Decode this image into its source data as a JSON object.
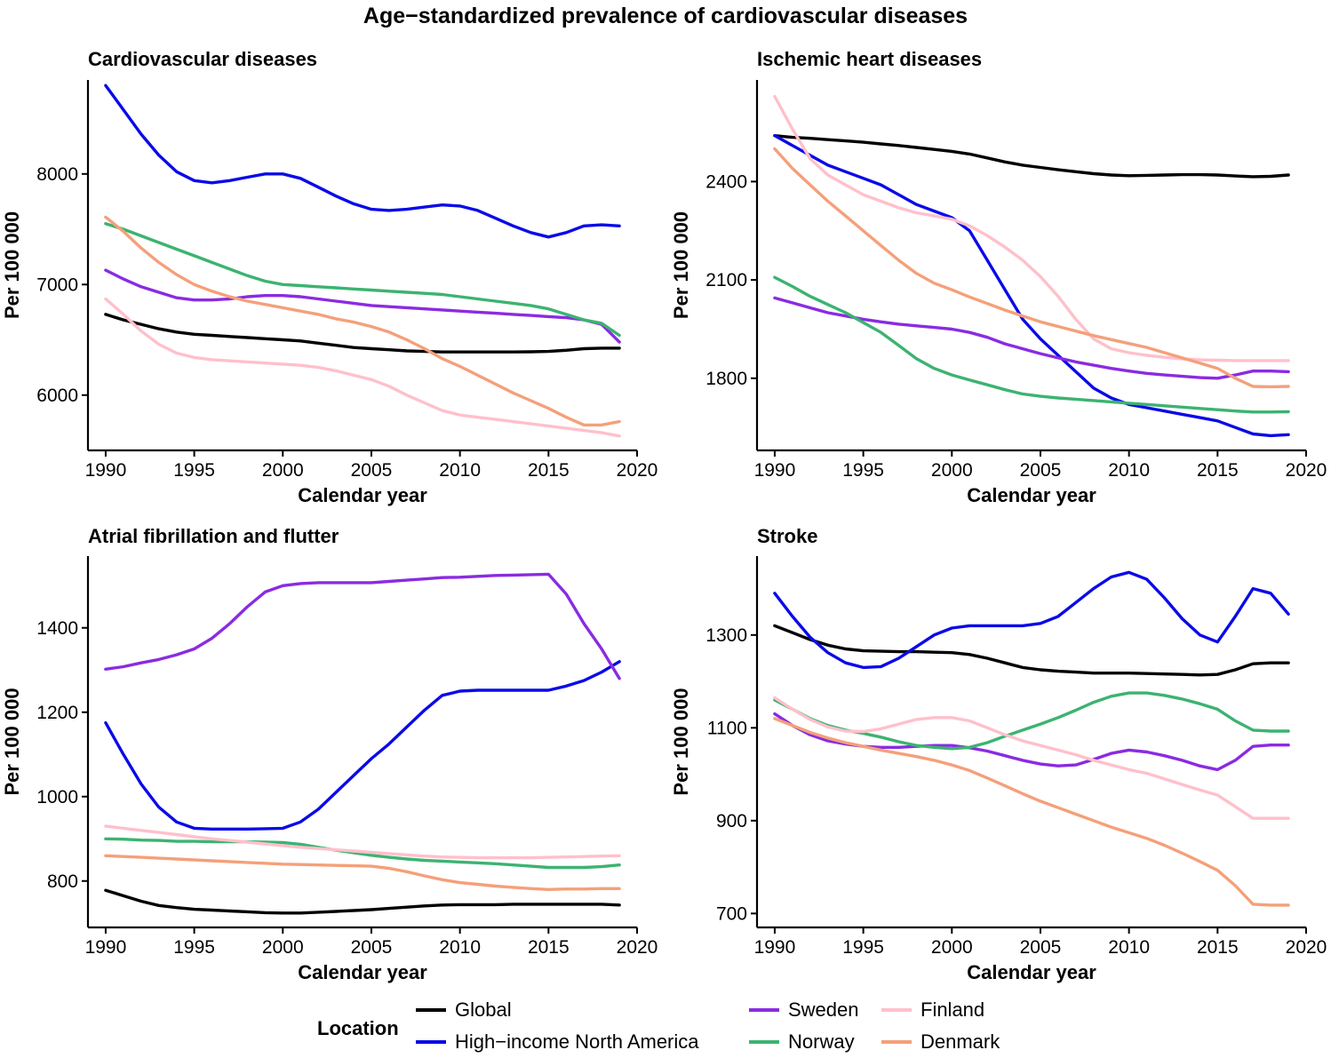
{
  "title": "Age−standardized prevalence of cardiovascular diseases",
  "legend": {
    "title": "Location",
    "items": [
      {
        "name": "Global",
        "color": "#000000"
      },
      {
        "name": "High−income North America",
        "color": "#0a0ae8"
      },
      {
        "name": "Sweden",
        "color": "#8a2be2"
      },
      {
        "name": "Norway",
        "color": "#3cb371"
      },
      {
        "name": "Finland",
        "color": "#ffc0cb"
      },
      {
        "name": "Denmark",
        "color": "#f4a07a"
      }
    ]
  },
  "chart_data": [
    {
      "type": "line",
      "title": "Cardiovascular diseases",
      "xlabel": "Calendar year",
      "ylabel": "Per 100 000",
      "xlim": [
        1989,
        2020
      ],
      "ylim": [
        5500,
        8850
      ],
      "xticks": [
        1990,
        1995,
        2000,
        2005,
        2010,
        2015,
        2020
      ],
      "yticks": [
        6000,
        7000,
        8000
      ],
      "x": [
        1990,
        1991,
        1992,
        1993,
        1994,
        1995,
        1996,
        1997,
        1998,
        1999,
        2000,
        2001,
        2002,
        2003,
        2004,
        2005,
        2006,
        2007,
        2008,
        2009,
        2010,
        2011,
        2012,
        2013,
        2014,
        2015,
        2016,
        2017,
        2018,
        2019
      ],
      "series": [
        {
          "name": "Global",
          "values": [
            6730,
            6680,
            6640,
            6600,
            6570,
            6550,
            6540,
            6530,
            6520,
            6510,
            6500,
            6490,
            6470,
            6450,
            6430,
            6420,
            6410,
            6400,
            6395,
            6390,
            6390,
            6390,
            6390,
            6390,
            6392,
            6395,
            6405,
            6420,
            6425,
            6425
          ]
        },
        {
          "name": "High−income North America",
          "values": [
            8800,
            8580,
            8360,
            8170,
            8020,
            7940,
            7920,
            7940,
            7970,
            8000,
            8000,
            7960,
            7880,
            7800,
            7730,
            7680,
            7670,
            7680,
            7700,
            7720,
            7710,
            7670,
            7600,
            7530,
            7470,
            7430,
            7470,
            7530,
            7540,
            7530
          ]
        },
        {
          "name": "Sweden",
          "values": [
            7130,
            7050,
            6980,
            6930,
            6880,
            6860,
            6860,
            6870,
            6890,
            6900,
            6900,
            6890,
            6870,
            6850,
            6830,
            6810,
            6800,
            6790,
            6780,
            6770,
            6760,
            6750,
            6740,
            6730,
            6720,
            6710,
            6700,
            6680,
            6640,
            6480
          ]
        },
        {
          "name": "Norway",
          "values": [
            7550,
            7500,
            7440,
            7380,
            7320,
            7260,
            7200,
            7140,
            7080,
            7030,
            7000,
            6990,
            6980,
            6970,
            6960,
            6950,
            6940,
            6930,
            6920,
            6910,
            6890,
            6870,
            6850,
            6830,
            6810,
            6780,
            6730,
            6680,
            6650,
            6540
          ]
        },
        {
          "name": "Finland",
          "values": [
            6870,
            6730,
            6580,
            6460,
            6380,
            6340,
            6320,
            6310,
            6300,
            6290,
            6280,
            6270,
            6250,
            6220,
            6180,
            6140,
            6080,
            6000,
            5930,
            5860,
            5820,
            5800,
            5780,
            5760,
            5740,
            5720,
            5700,
            5680,
            5660,
            5630
          ]
        },
        {
          "name": "Denmark",
          "values": [
            7610,
            7480,
            7330,
            7200,
            7090,
            7000,
            6940,
            6890,
            6850,
            6820,
            6790,
            6760,
            6730,
            6690,
            6660,
            6620,
            6570,
            6500,
            6420,
            6330,
            6260,
            6180,
            6100,
            6020,
            5950,
            5880,
            5800,
            5730,
            5730,
            5760
          ]
        }
      ]
    },
    {
      "type": "line",
      "title": "Ischemic heart diseases",
      "xlabel": "Calendar year",
      "ylabel": "Per 100 000",
      "xlim": [
        1989,
        2020
      ],
      "ylim": [
        1580,
        2710
      ],
      "xticks": [
        1990,
        1995,
        2000,
        2005,
        2010,
        2015,
        2020
      ],
      "yticks": [
        1800,
        2100,
        2400
      ],
      "x": [
        1990,
        1991,
        1992,
        1993,
        1994,
        1995,
        1996,
        1997,
        1998,
        1999,
        2000,
        2001,
        2002,
        2003,
        2004,
        2005,
        2006,
        2007,
        2008,
        2009,
        2010,
        2011,
        2012,
        2013,
        2014,
        2015,
        2016,
        2017,
        2018,
        2019
      ],
      "series": [
        {
          "name": "Global",
          "values": [
            2540,
            2535,
            2532,
            2528,
            2524,
            2520,
            2515,
            2510,
            2504,
            2498,
            2492,
            2484,
            2472,
            2460,
            2450,
            2443,
            2436,
            2430,
            2424,
            2420,
            2418,
            2419,
            2420,
            2421,
            2421,
            2420,
            2417,
            2415,
            2416,
            2420
          ]
        },
        {
          "name": "High−income North America",
          "values": [
            2540,
            2510,
            2480,
            2450,
            2430,
            2410,
            2390,
            2360,
            2330,
            2310,
            2290,
            2250,
            2160,
            2070,
            1980,
            1920,
            1870,
            1820,
            1770,
            1740,
            1720,
            1710,
            1700,
            1690,
            1680,
            1670,
            1650,
            1630,
            1625,
            1628
          ]
        },
        {
          "name": "Sweden",
          "values": [
            2045,
            2030,
            2015,
            2000,
            1990,
            1980,
            1972,
            1965,
            1960,
            1955,
            1950,
            1940,
            1925,
            1905,
            1890,
            1875,
            1862,
            1850,
            1840,
            1830,
            1822,
            1815,
            1810,
            1806,
            1802,
            1800,
            1810,
            1822,
            1822,
            1820
          ]
        },
        {
          "name": "Norway",
          "values": [
            2108,
            2080,
            2050,
            2025,
            2000,
            1970,
            1940,
            1900,
            1860,
            1830,
            1810,
            1795,
            1780,
            1765,
            1752,
            1745,
            1740,
            1736,
            1732,
            1728,
            1724,
            1720,
            1716,
            1712,
            1708,
            1704,
            1700,
            1697,
            1697,
            1698
          ]
        },
        {
          "name": "Finland",
          "values": [
            2660,
            2560,
            2470,
            2420,
            2390,
            2360,
            2340,
            2320,
            2305,
            2295,
            2285,
            2265,
            2235,
            2200,
            2160,
            2110,
            2050,
            1980,
            1920,
            1890,
            1878,
            1870,
            1864,
            1859,
            1856,
            1855,
            1854,
            1854,
            1854,
            1854
          ]
        },
        {
          "name": "Denmark",
          "values": [
            2500,
            2440,
            2390,
            2340,
            2295,
            2250,
            2205,
            2160,
            2120,
            2090,
            2070,
            2048,
            2028,
            2008,
            1990,
            1972,
            1958,
            1944,
            1930,
            1918,
            1906,
            1894,
            1878,
            1862,
            1846,
            1830,
            1800,
            1775,
            1774,
            1775
          ]
        }
      ]
    },
    {
      "type": "line",
      "title": "Atrial fibrillation and flutter",
      "xlabel": "Calendar year",
      "ylabel": "Per 100 000",
      "xlim": [
        1989,
        2020
      ],
      "ylim": [
        690,
        1570
      ],
      "xticks": [
        1990,
        1995,
        2000,
        2005,
        2010,
        2015,
        2020
      ],
      "yticks": [
        800,
        1000,
        1200,
        1400
      ],
      "x": [
        1990,
        1991,
        1992,
        1993,
        1994,
        1995,
        1996,
        1997,
        1998,
        1999,
        2000,
        2001,
        2002,
        2003,
        2004,
        2005,
        2006,
        2007,
        2008,
        2009,
        2010,
        2011,
        2012,
        2013,
        2014,
        2015,
        2016,
        2017,
        2018,
        2019
      ],
      "series": [
        {
          "name": "Global",
          "values": [
            778,
            765,
            752,
            742,
            737,
            733,
            731,
            729,
            727,
            725,
            724,
            724,
            726,
            728,
            730,
            732,
            735,
            738,
            741,
            743,
            744,
            744,
            744,
            745,
            745,
            745,
            745,
            745,
            745,
            743
          ]
        },
        {
          "name": "High−income North America",
          "values": [
            1175,
            1100,
            1030,
            975,
            940,
            925,
            923,
            923,
            923,
            924,
            925,
            940,
            970,
            1010,
            1050,
            1090,
            1125,
            1165,
            1205,
            1240,
            1250,
            1252,
            1252,
            1252,
            1252,
            1252,
            1262,
            1275,
            1295,
            1320
          ]
        },
        {
          "name": "Sweden",
          "values": [
            1302,
            1308,
            1317,
            1325,
            1336,
            1350,
            1375,
            1410,
            1450,
            1485,
            1500,
            1505,
            1507,
            1507,
            1507,
            1507,
            1510,
            1513,
            1516,
            1519,
            1520,
            1522,
            1524,
            1525,
            1526,
            1527,
            1480,
            1410,
            1350,
            1280
          ]
        },
        {
          "name": "Norway",
          "values": [
            900,
            899,
            897,
            896,
            894,
            894,
            893,
            893,
            893,
            892,
            891,
            887,
            880,
            873,
            867,
            861,
            856,
            852,
            849,
            847,
            845,
            843,
            841,
            838,
            835,
            832,
            832,
            832,
            834,
            838
          ]
        },
        {
          "name": "Finland",
          "values": [
            930,
            925,
            920,
            915,
            910,
            905,
            900,
            896,
            892,
            888,
            884,
            880,
            877,
            874,
            871,
            868,
            865,
            862,
            859,
            857,
            856,
            855,
            855,
            855,
            855,
            856,
            857,
            858,
            859,
            860
          ]
        },
        {
          "name": "Denmark",
          "values": [
            860,
            858,
            856,
            854,
            852,
            850,
            848,
            846,
            844,
            842,
            840,
            839,
            838,
            837,
            836,
            835,
            830,
            822,
            812,
            803,
            796,
            792,
            788,
            785,
            782,
            780,
            781,
            781,
            782,
            782
          ]
        }
      ]
    },
    {
      "type": "line",
      "title": "Stroke",
      "xlabel": "Calendar year",
      "ylabel": "Per 100 000",
      "xlim": [
        1989,
        2020
      ],
      "ylim": [
        670,
        1470
      ],
      "xticks": [
        1990,
        1995,
        2000,
        2005,
        2010,
        2015,
        2020
      ],
      "yticks": [
        700,
        900,
        1100,
        1300
      ],
      "x": [
        1990,
        1991,
        1992,
        1993,
        1994,
        1995,
        1996,
        1997,
        1998,
        1999,
        2000,
        2001,
        2002,
        2003,
        2004,
        2005,
        2006,
        2007,
        2008,
        2009,
        2010,
        2011,
        2012,
        2013,
        2014,
        2015,
        2016,
        2017,
        2018,
        2019
      ],
      "series": [
        {
          "name": "Global",
          "values": [
            1320,
            1305,
            1290,
            1278,
            1270,
            1266,
            1265,
            1264,
            1264,
            1263,
            1262,
            1258,
            1250,
            1240,
            1230,
            1225,
            1222,
            1220,
            1218,
            1218,
            1218,
            1217,
            1216,
            1215,
            1214,
            1215,
            1225,
            1238,
            1240,
            1240
          ]
        },
        {
          "name": "High−income North America",
          "values": [
            1390,
            1340,
            1295,
            1262,
            1240,
            1230,
            1232,
            1250,
            1275,
            1300,
            1315,
            1320,
            1320,
            1320,
            1320,
            1325,
            1340,
            1370,
            1400,
            1425,
            1435,
            1420,
            1380,
            1335,
            1300,
            1285,
            1340,
            1400,
            1390,
            1345
          ]
        },
        {
          "name": "Sweden",
          "values": [
            1130,
            1105,
            1085,
            1072,
            1065,
            1060,
            1058,
            1058,
            1060,
            1062,
            1062,
            1057,
            1050,
            1040,
            1030,
            1022,
            1018,
            1020,
            1032,
            1045,
            1052,
            1048,
            1040,
            1030,
            1018,
            1010,
            1030,
            1060,
            1063,
            1063
          ]
        },
        {
          "name": "Norway",
          "values": [
            1160,
            1140,
            1120,
            1105,
            1095,
            1088,
            1080,
            1070,
            1062,
            1058,
            1055,
            1058,
            1068,
            1082,
            1095,
            1108,
            1122,
            1138,
            1155,
            1168,
            1175,
            1175,
            1170,
            1162,
            1152,
            1140,
            1115,
            1095,
            1093,
            1093
          ]
        },
        {
          "name": "Finland",
          "values": [
            1165,
            1140,
            1118,
            1102,
            1093,
            1092,
            1098,
            1108,
            1118,
            1122,
            1122,
            1115,
            1100,
            1085,
            1072,
            1062,
            1052,
            1042,
            1030,
            1020,
            1010,
            1002,
            990,
            978,
            966,
            955,
            930,
            905,
            905,
            905
          ]
        },
        {
          "name": "Denmark",
          "values": [
            1120,
            1105,
            1090,
            1078,
            1068,
            1060,
            1052,
            1045,
            1038,
            1030,
            1020,
            1008,
            992,
            975,
            958,
            942,
            928,
            914,
            900,
            886,
            874,
            862,
            847,
            830,
            812,
            793,
            760,
            720,
            718,
            718
          ]
        }
      ]
    }
  ]
}
